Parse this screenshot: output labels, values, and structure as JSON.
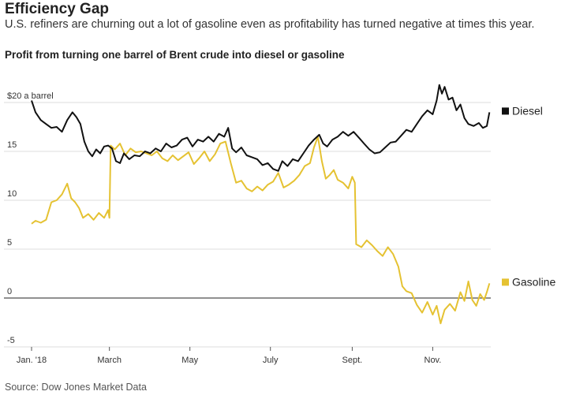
{
  "header": {
    "title": "Efficiency Gap",
    "subtitle": "U.S. refiners are churning out a lot of gasoline even as profitability has turned negative at times this year.",
    "chart_title": "Profit from turning one barrel of Brent crude into diesel or gasoline"
  },
  "source": "Source: Dow Jones Market Data",
  "colors": {
    "diesel": "#111111",
    "gasoline": "#e5c232",
    "grid": "#dcdcdc",
    "zero_line": "#222222"
  },
  "chart_data": {
    "type": "line",
    "title": "Profit from turning one barrel of Brent crude into diesel or gasoline",
    "xlabel": "",
    "ylabel": "",
    "ylim": [
      -5,
      20
    ],
    "y_ticks": [
      -5,
      0,
      5,
      10,
      15,
      20
    ],
    "y_tick_labels": [
      "-5",
      "0",
      "5",
      "10",
      "15",
      "$20 a barrel"
    ],
    "x_tick_labels": [
      "Jan. '18",
      "March",
      "May",
      "July",
      "Sept.",
      "Nov."
    ],
    "x_ticks": [
      "2018-01-01",
      "2018-03-01",
      "2018-05-01",
      "2018-07-01",
      "2018-09-01",
      "2018-11-01"
    ],
    "x_range": [
      "2018-01-01",
      "2018-12-15"
    ],
    "grid": true,
    "legend": "right, labels at line ends",
    "series": [
      {
        "name": "Diesel",
        "points": [
          [
            "2018-01-01",
            20.2
          ],
          [
            "2018-01-04",
            19.0
          ],
          [
            "2018-01-08",
            18.2
          ],
          [
            "2018-01-12",
            17.8
          ],
          [
            "2018-01-16",
            17.4
          ],
          [
            "2018-01-20",
            17.5
          ],
          [
            "2018-01-24",
            17.0
          ],
          [
            "2018-01-28",
            18.2
          ],
          [
            "2018-02-01",
            19.0
          ],
          [
            "2018-02-04",
            18.5
          ],
          [
            "2018-02-07",
            17.8
          ],
          [
            "2018-02-10",
            16.0
          ],
          [
            "2018-02-13",
            15.0
          ],
          [
            "2018-02-16",
            14.5
          ],
          [
            "2018-02-19",
            15.2
          ],
          [
            "2018-02-22",
            14.8
          ],
          [
            "2018-02-25",
            15.5
          ],
          [
            "2018-02-28",
            15.6
          ],
          [
            "2018-03-03",
            15.3
          ],
          [
            "2018-03-06",
            14.0
          ],
          [
            "2018-03-09",
            13.8
          ],
          [
            "2018-03-12",
            14.8
          ],
          [
            "2018-03-16",
            14.2
          ],
          [
            "2018-03-20",
            14.6
          ],
          [
            "2018-03-24",
            14.5
          ],
          [
            "2018-03-28",
            15.0
          ],
          [
            "2018-04-01",
            14.8
          ],
          [
            "2018-04-05",
            15.3
          ],
          [
            "2018-04-09",
            15.0
          ],
          [
            "2018-04-13",
            15.8
          ],
          [
            "2018-04-17",
            15.4
          ],
          [
            "2018-04-21",
            15.6
          ],
          [
            "2018-04-25",
            16.2
          ],
          [
            "2018-04-29",
            16.4
          ],
          [
            "2018-05-03",
            15.5
          ],
          [
            "2018-05-07",
            16.2
          ],
          [
            "2018-05-11",
            16.0
          ],
          [
            "2018-05-15",
            16.5
          ],
          [
            "2018-05-19",
            16.0
          ],
          [
            "2018-05-23",
            16.8
          ],
          [
            "2018-05-27",
            16.5
          ],
          [
            "2018-05-30",
            17.4
          ],
          [
            "2018-06-02",
            15.3
          ],
          [
            "2018-06-05",
            14.9
          ],
          [
            "2018-06-09",
            15.4
          ],
          [
            "2018-06-13",
            14.6
          ],
          [
            "2018-06-17",
            14.4
          ],
          [
            "2018-06-21",
            14.2
          ],
          [
            "2018-06-25",
            13.6
          ],
          [
            "2018-06-29",
            13.8
          ],
          [
            "2018-07-03",
            13.2
          ],
          [
            "2018-07-07",
            13.0
          ],
          [
            "2018-07-10",
            14.0
          ],
          [
            "2018-07-14",
            13.5
          ],
          [
            "2018-07-18",
            14.2
          ],
          [
            "2018-07-22",
            14.0
          ],
          [
            "2018-07-26",
            14.8
          ],
          [
            "2018-07-30",
            15.6
          ],
          [
            "2018-08-03",
            16.2
          ],
          [
            "2018-08-07",
            16.7
          ],
          [
            "2018-08-10",
            15.8
          ],
          [
            "2018-08-13",
            15.5
          ],
          [
            "2018-08-17",
            16.2
          ],
          [
            "2018-08-21",
            16.5
          ],
          [
            "2018-08-25",
            17.0
          ],
          [
            "2018-08-29",
            16.6
          ],
          [
            "2018-09-02",
            17.0
          ],
          [
            "2018-09-06",
            16.4
          ],
          [
            "2018-09-10",
            15.8
          ],
          [
            "2018-09-14",
            15.2
          ],
          [
            "2018-09-18",
            14.8
          ],
          [
            "2018-09-22",
            14.9
          ],
          [
            "2018-09-26",
            15.4
          ],
          [
            "2018-09-30",
            15.9
          ],
          [
            "2018-10-04",
            16.0
          ],
          [
            "2018-10-08",
            16.6
          ],
          [
            "2018-10-12",
            17.2
          ],
          [
            "2018-10-16",
            17.0
          ],
          [
            "2018-10-20",
            17.8
          ],
          [
            "2018-10-24",
            18.6
          ],
          [
            "2018-10-28",
            19.2
          ],
          [
            "2018-11-01",
            18.8
          ],
          [
            "2018-11-04",
            20.2
          ],
          [
            "2018-11-06",
            21.8
          ],
          [
            "2018-11-08",
            20.9
          ],
          [
            "2018-11-10",
            21.6
          ],
          [
            "2018-11-13",
            20.3
          ],
          [
            "2018-11-16",
            20.5
          ],
          [
            "2018-11-19",
            19.2
          ],
          [
            "2018-11-22",
            19.8
          ],
          [
            "2018-11-25",
            18.4
          ],
          [
            "2018-11-28",
            17.8
          ],
          [
            "2018-12-02",
            17.6
          ],
          [
            "2018-12-06",
            17.9
          ],
          [
            "2018-12-09",
            17.4
          ],
          [
            "2018-12-12",
            17.6
          ],
          [
            "2018-12-14",
            19.0
          ]
        ]
      },
      {
        "name": "Gasoline",
        "points": [
          [
            "2018-01-01",
            7.6
          ],
          [
            "2018-01-04",
            7.9
          ],
          [
            "2018-01-08",
            7.7
          ],
          [
            "2018-01-12",
            8.0
          ],
          [
            "2018-01-16",
            9.8
          ],
          [
            "2018-01-20",
            10.0
          ],
          [
            "2018-01-24",
            10.6
          ],
          [
            "2018-01-28",
            11.7
          ],
          [
            "2018-01-31",
            10.2
          ],
          [
            "2018-02-03",
            9.8
          ],
          [
            "2018-02-06",
            9.2
          ],
          [
            "2018-02-09",
            8.2
          ],
          [
            "2018-02-13",
            8.6
          ],
          [
            "2018-02-17",
            8.0
          ],
          [
            "2018-02-21",
            8.7
          ],
          [
            "2018-02-25",
            8.2
          ],
          [
            "2018-02-28",
            9.0
          ],
          [
            "2018-03-01",
            8.2
          ],
          [
            "2018-03-02",
            15.6
          ],
          [
            "2018-03-05",
            15.2
          ],
          [
            "2018-03-09",
            15.8
          ],
          [
            "2018-03-13",
            14.6
          ],
          [
            "2018-03-17",
            15.3
          ],
          [
            "2018-03-21",
            14.9
          ],
          [
            "2018-03-25",
            15.0
          ],
          [
            "2018-03-29",
            14.8
          ],
          [
            "2018-04-02",
            14.6
          ],
          [
            "2018-04-06",
            15.0
          ],
          [
            "2018-04-10",
            14.3
          ],
          [
            "2018-04-14",
            14.0
          ],
          [
            "2018-04-18",
            14.6
          ],
          [
            "2018-04-22",
            14.1
          ],
          [
            "2018-04-26",
            14.5
          ],
          [
            "2018-04-30",
            14.9
          ],
          [
            "2018-05-04",
            13.7
          ],
          [
            "2018-05-08",
            14.3
          ],
          [
            "2018-05-12",
            15.0
          ],
          [
            "2018-05-16",
            14.0
          ],
          [
            "2018-05-20",
            14.7
          ],
          [
            "2018-05-24",
            15.8
          ],
          [
            "2018-05-28",
            16.0
          ],
          [
            "2018-06-01",
            13.8
          ],
          [
            "2018-06-05",
            11.8
          ],
          [
            "2018-06-09",
            12.0
          ],
          [
            "2018-06-13",
            11.2
          ],
          [
            "2018-06-17",
            10.9
          ],
          [
            "2018-06-21",
            11.4
          ],
          [
            "2018-06-25",
            11.0
          ],
          [
            "2018-06-29",
            11.6
          ],
          [
            "2018-07-03",
            11.9
          ],
          [
            "2018-07-07",
            12.8
          ],
          [
            "2018-07-11",
            11.3
          ],
          [
            "2018-07-15",
            11.6
          ],
          [
            "2018-07-19",
            12.0
          ],
          [
            "2018-07-23",
            12.6
          ],
          [
            "2018-07-27",
            13.5
          ],
          [
            "2018-07-31",
            13.8
          ],
          [
            "2018-08-03",
            15.4
          ],
          [
            "2018-08-06",
            16.5
          ],
          [
            "2018-08-09",
            14.0
          ],
          [
            "2018-08-12",
            12.2
          ],
          [
            "2018-08-15",
            12.6
          ],
          [
            "2018-08-18",
            13.1
          ],
          [
            "2018-08-21",
            12.1
          ],
          [
            "2018-08-25",
            11.8
          ],
          [
            "2018-08-29",
            11.2
          ],
          [
            "2018-09-01",
            12.4
          ],
          [
            "2018-09-03",
            11.8
          ],
          [
            "2018-09-04",
            5.5
          ],
          [
            "2018-09-08",
            5.2
          ],
          [
            "2018-09-12",
            5.9
          ],
          [
            "2018-09-16",
            5.4
          ],
          [
            "2018-09-20",
            4.8
          ],
          [
            "2018-09-24",
            4.3
          ],
          [
            "2018-09-28",
            5.2
          ],
          [
            "2018-10-02",
            4.5
          ],
          [
            "2018-10-06",
            3.2
          ],
          [
            "2018-10-09",
            1.2
          ],
          [
            "2018-10-12",
            0.7
          ],
          [
            "2018-10-16",
            0.5
          ],
          [
            "2018-10-20",
            -0.7
          ],
          [
            "2018-10-24",
            -1.5
          ],
          [
            "2018-10-28",
            -0.4
          ],
          [
            "2018-11-01",
            -1.7
          ],
          [
            "2018-11-04",
            -0.8
          ],
          [
            "2018-11-07",
            -2.6
          ],
          [
            "2018-11-10",
            -1.2
          ],
          [
            "2018-11-14",
            -0.6
          ],
          [
            "2018-11-18",
            -1.3
          ],
          [
            "2018-11-22",
            0.6
          ],
          [
            "2018-11-25",
            -0.3
          ],
          [
            "2018-11-28",
            1.7
          ],
          [
            "2018-12-01",
            -0.2
          ],
          [
            "2018-12-04",
            -0.8
          ],
          [
            "2018-12-07",
            0.4
          ],
          [
            "2018-12-10",
            -0.2
          ],
          [
            "2018-12-12",
            0.6
          ],
          [
            "2018-12-14",
            1.5
          ]
        ]
      }
    ]
  }
}
